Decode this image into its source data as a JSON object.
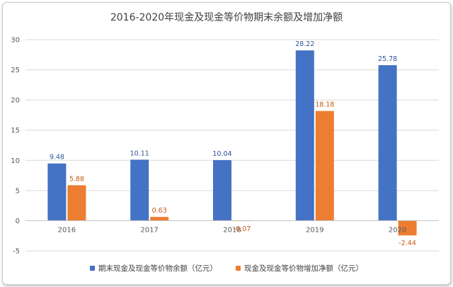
{
  "chart_data": {
    "type": "bar",
    "title": "2016-2020年现金及现金等价物期末余额及增加净额",
    "categories": [
      "2016",
      "2017",
      "2018",
      "2019",
      "2020"
    ],
    "series": [
      {
        "name": "期末现金及现金等价物余额（亿元）",
        "values": [
          9.48,
          10.11,
          10.04,
          28.22,
          25.78
        ],
        "labels": [
          "9.48",
          "10.11",
          "10.04",
          "28.22",
          "25.78"
        ],
        "color": "#4472c4",
        "label_color": "#2f5597"
      },
      {
        "name": "现金及现金等价物增加净额（亿元）",
        "values": [
          5.88,
          0.63,
          -0.07,
          18.18,
          -2.44
        ],
        "labels": [
          "5.88",
          "0.63",
          "-0.07",
          "18.18",
          "-2.44"
        ],
        "color": "#ed7d31",
        "label_color": "#c55a11"
      }
    ],
    "yticks": [
      "-5",
      "0",
      "5",
      "10",
      "15",
      "20",
      "25",
      "30"
    ],
    "ylim": [
      -5,
      30
    ],
    "grid": true,
    "legend_position": "bottom"
  }
}
